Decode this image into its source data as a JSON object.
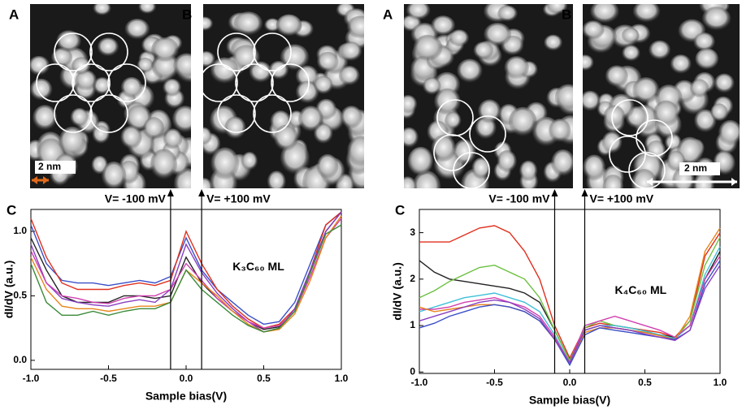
{
  "chart_data": [
    {
      "type": "line",
      "panel_label": "C",
      "image_labels": [
        "A",
        "B"
      ],
      "scale_bar": "2 nm",
      "annotation": "K₃C₆₀ ML",
      "xlabel": "Sample bias(V)",
      "ylabel": "dI/dV (a.u.)",
      "xlim": [
        -1.0,
        1.0
      ],
      "ylim": [
        -0.07,
        1.17
      ],
      "xticks": [
        {
          "value": -1,
          "label": "-1.0"
        },
        -0.5,
        {
          "value": 0,
          "label": "0.0"
        },
        0.5,
        {
          "value": 1,
          "label": "1.0"
        }
      ],
      "yticks": [
        {
          "value": 0,
          "label": "0.0"
        },
        0.5,
        {
          "value": 1,
          "label": "1.0"
        }
      ],
      "markers": [
        {
          "value": -0.1,
          "label": "V= -100 mV"
        },
        {
          "value": 0.1,
          "label": "V= +100 mV"
        }
      ],
      "x": [
        -1.0,
        -0.9,
        -0.8,
        -0.7,
        -0.6,
        -0.5,
        -0.4,
        -0.3,
        -0.2,
        -0.1,
        0.0,
        0.1,
        0.2,
        0.3,
        0.4,
        0.5,
        0.6,
        0.7,
        0.8,
        0.9,
        1.0
      ],
      "series": [
        {
          "color": "#3a4fc8",
          "values": [
            1.05,
            0.75,
            0.62,
            0.6,
            0.6,
            0.58,
            0.6,
            0.62,
            0.6,
            0.65,
            0.95,
            0.7,
            0.55,
            0.45,
            0.35,
            0.28,
            0.3,
            0.45,
            0.75,
            1.05,
            1.15
          ]
        },
        {
          "color": "#e0301e",
          "values": [
            1.1,
            0.8,
            0.6,
            0.55,
            0.55,
            0.55,
            0.58,
            0.6,
            0.58,
            0.62,
            1.0,
            0.75,
            0.55,
            0.42,
            0.32,
            0.25,
            0.28,
            0.4,
            0.7,
            1.05,
            1.15
          ]
        },
        {
          "color": "#222222",
          "values": [
            0.95,
            0.7,
            0.5,
            0.45,
            0.45,
            0.45,
            0.5,
            0.5,
            0.48,
            0.5,
            0.8,
            0.6,
            0.48,
            0.38,
            0.3,
            0.24,
            0.26,
            0.38,
            0.68,
            1.0,
            1.15
          ]
        },
        {
          "color": "#8a3fc0",
          "values": [
            0.9,
            0.6,
            0.48,
            0.45,
            0.43,
            0.42,
            0.45,
            0.47,
            0.45,
            0.55,
            0.9,
            0.68,
            0.52,
            0.4,
            0.3,
            0.22,
            0.25,
            0.4,
            0.7,
            1.0,
            1.15
          ]
        },
        {
          "color": "#d040b0",
          "values": [
            0.85,
            0.6,
            0.5,
            0.48,
            0.45,
            0.44,
            0.48,
            0.5,
            0.5,
            0.55,
            0.75,
            0.62,
            0.48,
            0.38,
            0.3,
            0.25,
            0.27,
            0.38,
            0.65,
            0.95,
            1.1
          ]
        },
        {
          "color": "#e8841c",
          "values": [
            0.8,
            0.55,
            0.42,
            0.4,
            0.4,
            0.38,
            0.4,
            0.42,
            0.42,
            0.45,
            0.7,
            0.6,
            0.5,
            0.38,
            0.28,
            0.22,
            0.24,
            0.36,
            0.62,
            0.95,
            1.12
          ]
        },
        {
          "color": "#3a8a3a",
          "values": [
            0.75,
            0.45,
            0.35,
            0.35,
            0.38,
            0.35,
            0.38,
            0.4,
            0.4,
            0.45,
            0.7,
            0.55,
            0.45,
            0.35,
            0.27,
            0.22,
            0.25,
            0.38,
            0.68,
            0.98,
            1.05
          ]
        }
      ]
    },
    {
      "type": "line",
      "panel_label": "C",
      "image_labels": [
        "A",
        "B"
      ],
      "scale_bar": "2 nm",
      "annotation": "K₄C₆₀ ML",
      "xlabel": "Sample bias(V)",
      "ylabel": "dI/dV (a.u.)",
      "xlim": [
        -1.0,
        1.0
      ],
      "ylim": [
        -0.03,
        3.5
      ],
      "xticks": [
        {
          "value": -1,
          "label": "-1.0"
        },
        -0.5,
        {
          "value": 0,
          "label": "0.0"
        },
        0.5,
        {
          "value": 1,
          "label": "1.0"
        }
      ],
      "yticks": [
        0,
        1,
        2,
        3
      ],
      "markers": [
        {
          "value": -0.1,
          "label": "V= -100 mV"
        },
        {
          "value": 0.1,
          "label": "V= +100 mV"
        }
      ],
      "x": [
        -1.0,
        -0.9,
        -0.8,
        -0.7,
        -0.6,
        -0.5,
        -0.4,
        -0.3,
        -0.2,
        -0.1,
        0.0,
        0.1,
        0.2,
        0.3,
        0.4,
        0.5,
        0.6,
        0.7,
        0.8,
        0.9,
        1.0
      ],
      "series": [
        {
          "color": "#e0301e",
          "values": [
            2.8,
            2.8,
            2.8,
            2.95,
            3.1,
            3.15,
            3.0,
            2.6,
            2.0,
            1.0,
            0.3,
            0.95,
            1.05,
            1.0,
            0.95,
            0.9,
            0.85,
            0.75,
            1.1,
            2.5,
            3.0
          ]
        },
        {
          "color": "#222222",
          "values": [
            2.4,
            2.15,
            2.0,
            1.95,
            1.9,
            1.85,
            1.8,
            1.7,
            1.5,
            0.9,
            0.25,
            0.9,
            1.0,
            0.95,
            0.9,
            0.85,
            0.8,
            0.75,
            1.0,
            2.0,
            2.6
          ]
        },
        {
          "color": "#6cc040",
          "values": [
            1.6,
            1.75,
            1.95,
            2.1,
            2.25,
            2.3,
            2.15,
            2.0,
            1.6,
            0.9,
            0.25,
            0.95,
            1.1,
            1.0,
            0.95,
            0.88,
            0.8,
            0.72,
            1.1,
            2.3,
            2.9
          ]
        },
        {
          "color": "#40c0d8",
          "values": [
            1.3,
            1.4,
            1.5,
            1.6,
            1.65,
            1.7,
            1.6,
            1.5,
            1.3,
            0.8,
            0.2,
            0.9,
            1.0,
            1.0,
            0.95,
            0.88,
            0.8,
            0.72,
            1.0,
            2.1,
            2.7
          ]
        },
        {
          "color": "#d040b0",
          "values": [
            1.35,
            1.35,
            1.4,
            1.5,
            1.55,
            1.6,
            1.5,
            1.4,
            1.2,
            0.75,
            0.2,
            1.0,
            1.1,
            1.2,
            1.1,
            1.0,
            0.9,
            0.75,
            1.0,
            2.0,
            2.5
          ]
        },
        {
          "color": "#e8841c",
          "values": [
            1.4,
            1.3,
            1.35,
            1.4,
            1.45,
            1.45,
            1.4,
            1.3,
            1.1,
            0.7,
            0.2,
            0.85,
            0.95,
            0.95,
            0.9,
            0.85,
            0.78,
            0.7,
            1.2,
            2.6,
            3.1
          ]
        },
        {
          "color": "#3a4fc8",
          "values": [
            0.95,
            1.05,
            1.2,
            1.3,
            1.4,
            1.45,
            1.4,
            1.3,
            1.1,
            0.7,
            0.15,
            0.8,
            0.95,
            0.9,
            0.85,
            0.8,
            0.75,
            0.7,
            0.9,
            1.9,
            2.4
          ]
        },
        {
          "color": "#8a3fc0",
          "values": [
            1.1,
            1.2,
            1.3,
            1.4,
            1.5,
            1.55,
            1.5,
            1.35,
            1.15,
            0.7,
            0.2,
            0.9,
            1.0,
            0.95,
            0.9,
            0.82,
            0.75,
            0.68,
            0.9,
            1.8,
            2.3
          ]
        }
      ]
    }
  ]
}
